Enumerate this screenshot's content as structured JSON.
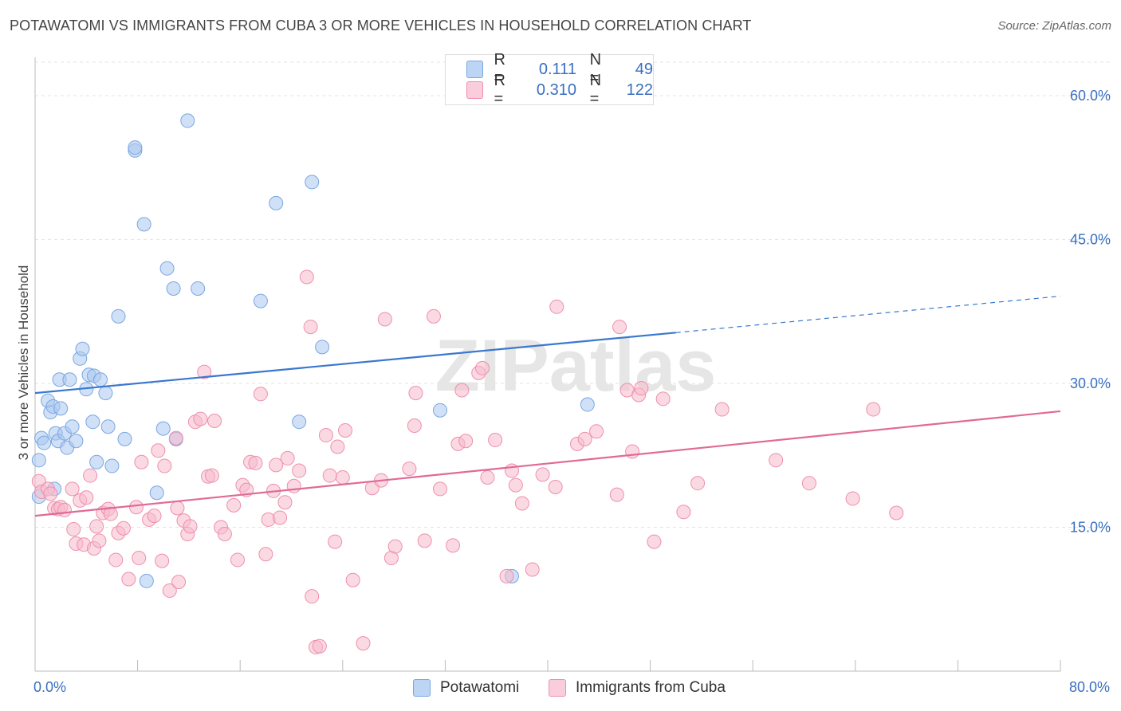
{
  "title": "POTAWATOMI VS IMMIGRANTS FROM CUBA 3 OR MORE VEHICLES IN HOUSEHOLD CORRELATION CHART",
  "source": "Source: ZipAtlas.com",
  "watermark": "ZIPatlas",
  "legend": {
    "r_label": "R =",
    "n_label": "N =",
    "rows": [
      {
        "r": "0.111",
        "n": "49"
      },
      {
        "r": "0.310",
        "n": "122"
      }
    ]
  },
  "chart_data": {
    "type": "scatter",
    "ylabel": "3 or more Vehicles in Household",
    "xlim": [
      0,
      80
    ],
    "ylim": [
      0,
      64
    ],
    "x_tick_labels": [
      "0.0%",
      "80.0%"
    ],
    "y_ticks": [
      15,
      30,
      45,
      60
    ],
    "y_tick_labels": [
      "15.0%",
      "30.0%",
      "45.0%",
      "60.0%"
    ],
    "series": [
      {
        "name": "Potawatomi",
        "color": "#a9c8f0",
        "stroke": "#7aa6e0",
        "line_color": "#3a78d0",
        "trend": {
          "x0": 0,
          "y0": 29.0,
          "x1": 50,
          "y1": 35.3,
          "dash_to_x": 80,
          "dash_to_y": 39.1
        },
        "points": [
          [
            0.3,
            18.2
          ],
          [
            0.3,
            22.0
          ],
          [
            0.5,
            24.3
          ],
          [
            0.7,
            23.8
          ],
          [
            1.0,
            28.2
          ],
          [
            1.2,
            27.0
          ],
          [
            1.4,
            27.6
          ],
          [
            1.5,
            19.0
          ],
          [
            1.6,
            24.8
          ],
          [
            1.8,
            24.0
          ],
          [
            1.9,
            30.4
          ],
          [
            2.0,
            27.4
          ],
          [
            2.3,
            24.8
          ],
          [
            2.5,
            23.3
          ],
          [
            2.7,
            30.4
          ],
          [
            2.9,
            25.5
          ],
          [
            3.2,
            24.0
          ],
          [
            3.5,
            32.6
          ],
          [
            3.7,
            33.6
          ],
          [
            4.0,
            29.4
          ],
          [
            4.2,
            30.9
          ],
          [
            4.5,
            26.0
          ],
          [
            4.6,
            30.8
          ],
          [
            4.8,
            21.8
          ],
          [
            5.1,
            30.4
          ],
          [
            5.5,
            29.0
          ],
          [
            5.7,
            25.5
          ],
          [
            6.0,
            21.4
          ],
          [
            6.5,
            37.0
          ],
          [
            7.0,
            24.2
          ],
          [
            7.8,
            54.3
          ],
          [
            7.8,
            54.6
          ],
          [
            8.5,
            46.6
          ],
          [
            8.7,
            9.4
          ],
          [
            9.5,
            18.6
          ],
          [
            10.0,
            25.3
          ],
          [
            10.3,
            42.0
          ],
          [
            10.8,
            39.9
          ],
          [
            11.0,
            24.2
          ],
          [
            11.9,
            57.4
          ],
          [
            12.7,
            39.9
          ],
          [
            17.6,
            38.6
          ],
          [
            18.8,
            48.8
          ],
          [
            20.6,
            26.0
          ],
          [
            21.6,
            51.0
          ],
          [
            22.4,
            33.8
          ],
          [
            31.6,
            27.2
          ],
          [
            37.2,
            9.9
          ],
          [
            43.1,
            27.8
          ]
        ]
      },
      {
        "name": "Immigrants from Cuba",
        "color": "#f7b9cc",
        "stroke": "#ee8fae",
        "line_color": "#e06a96",
        "trend": {
          "x0": 0,
          "y0": 16.2,
          "x1": 80,
          "y1": 27.1
        },
        "points": [
          [
            0.3,
            19.8
          ],
          [
            0.5,
            18.7
          ],
          [
            1.0,
            19.0
          ],
          [
            1.2,
            18.5
          ],
          [
            1.5,
            17.0
          ],
          [
            1.8,
            16.9
          ],
          [
            2.0,
            17.1
          ],
          [
            2.3,
            16.8
          ],
          [
            2.9,
            19.0
          ],
          [
            3.0,
            14.8
          ],
          [
            3.2,
            13.3
          ],
          [
            3.5,
            17.8
          ],
          [
            3.8,
            13.2
          ],
          [
            4.0,
            18.1
          ],
          [
            4.3,
            20.4
          ],
          [
            4.6,
            12.8
          ],
          [
            4.8,
            15.1
          ],
          [
            5.0,
            13.6
          ],
          [
            5.3,
            16.5
          ],
          [
            5.7,
            16.9
          ],
          [
            5.9,
            16.4
          ],
          [
            6.3,
            11.6
          ],
          [
            6.5,
            14.4
          ],
          [
            6.9,
            14.9
          ],
          [
            7.3,
            9.6
          ],
          [
            7.9,
            17.1
          ],
          [
            8.1,
            11.8
          ],
          [
            8.3,
            21.8
          ],
          [
            8.9,
            15.8
          ],
          [
            9.3,
            16.2
          ],
          [
            9.6,
            23.0
          ],
          [
            9.9,
            11.5
          ],
          [
            10.1,
            21.4
          ],
          [
            10.5,
            8.4
          ],
          [
            11.0,
            24.3
          ],
          [
            11.1,
            17.0
          ],
          [
            11.2,
            9.3
          ],
          [
            11.6,
            15.7
          ],
          [
            11.9,
            14.3
          ],
          [
            12.1,
            15.1
          ],
          [
            12.5,
            26.0
          ],
          [
            12.9,
            26.3
          ],
          [
            13.2,
            31.2
          ],
          [
            13.5,
            20.3
          ],
          [
            13.8,
            20.4
          ],
          [
            14.0,
            26.1
          ],
          [
            14.5,
            15.0
          ],
          [
            14.8,
            14.3
          ],
          [
            15.5,
            17.3
          ],
          [
            15.8,
            11.6
          ],
          [
            16.2,
            19.4
          ],
          [
            16.5,
            18.9
          ],
          [
            16.8,
            21.8
          ],
          [
            17.2,
            21.7
          ],
          [
            17.6,
            28.9
          ],
          [
            18.0,
            12.2
          ],
          [
            18.2,
            15.8
          ],
          [
            18.6,
            18.8
          ],
          [
            18.8,
            21.5
          ],
          [
            19.1,
            16.0
          ],
          [
            19.5,
            17.6
          ],
          [
            19.7,
            22.2
          ],
          [
            20.2,
            19.3
          ],
          [
            20.6,
            20.9
          ],
          [
            21.2,
            41.1
          ],
          [
            21.5,
            35.9
          ],
          [
            21.6,
            7.8
          ],
          [
            21.9,
            2.5
          ],
          [
            22.2,
            2.6
          ],
          [
            22.7,
            24.6
          ],
          [
            23.0,
            20.4
          ],
          [
            23.4,
            13.5
          ],
          [
            23.6,
            23.4
          ],
          [
            24.0,
            20.2
          ],
          [
            24.2,
            25.1
          ],
          [
            24.8,
            9.5
          ],
          [
            25.6,
            2.9
          ],
          [
            26.3,
            19.1
          ],
          [
            27.0,
            19.9
          ],
          [
            27.3,
            36.7
          ],
          [
            27.8,
            11.8
          ],
          [
            28.1,
            13.0
          ],
          [
            29.2,
            21.1
          ],
          [
            29.6,
            25.6
          ],
          [
            29.7,
            29.0
          ],
          [
            30.4,
            13.6
          ],
          [
            31.1,
            37.0
          ],
          [
            31.6,
            19.0
          ],
          [
            32.6,
            13.1
          ],
          [
            33.0,
            23.7
          ],
          [
            33.3,
            29.3
          ],
          [
            33.6,
            24.0
          ],
          [
            34.6,
            31.1
          ],
          [
            34.9,
            31.6
          ],
          [
            35.3,
            20.2
          ],
          [
            35.9,
            24.1
          ],
          [
            36.8,
            9.9
          ],
          [
            37.2,
            20.9
          ],
          [
            37.5,
            19.4
          ],
          [
            38.0,
            17.5
          ],
          [
            38.8,
            10.6
          ],
          [
            39.6,
            20.5
          ],
          [
            40.6,
            19.2
          ],
          [
            40.7,
            38.0
          ],
          [
            42.3,
            23.7
          ],
          [
            42.9,
            24.2
          ],
          [
            43.8,
            25.0
          ],
          [
            45.4,
            18.4
          ],
          [
            45.6,
            35.9
          ],
          [
            46.2,
            29.3
          ],
          [
            46.6,
            22.9
          ],
          [
            47.1,
            28.8
          ],
          [
            47.3,
            29.5
          ],
          [
            48.3,
            13.5
          ],
          [
            49.0,
            28.4
          ],
          [
            50.6,
            16.6
          ],
          [
            51.7,
            19.6
          ],
          [
            53.6,
            27.3
          ],
          [
            57.8,
            22.0
          ],
          [
            60.4,
            19.6
          ],
          [
            63.8,
            18.0
          ],
          [
            65.4,
            27.3
          ],
          [
            67.2,
            16.5
          ]
        ]
      }
    ]
  }
}
